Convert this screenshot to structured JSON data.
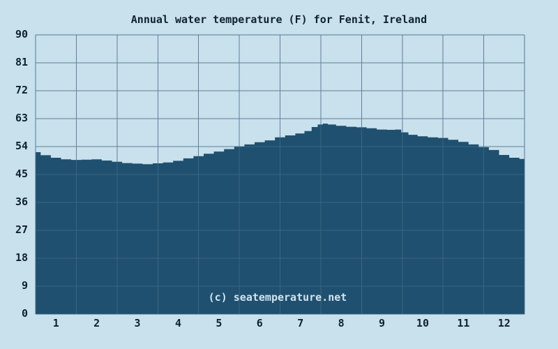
{
  "chart_data": {
    "type": "area",
    "title": "Annual water temperature (F) for Fenit, Ireland",
    "watermark": "(c) seatemperature.net",
    "x_ticks": [
      "1",
      "2",
      "3",
      "4",
      "5",
      "6",
      "7",
      "8",
      "9",
      "10",
      "11",
      "12"
    ],
    "y_ticks": [
      90,
      81,
      72,
      63,
      54,
      45,
      36,
      27,
      18,
      9,
      0
    ],
    "ylim": [
      0,
      90
    ],
    "xlim": [
      0.5,
      12.5
    ],
    "grid": true,
    "unit": "F",
    "series": [
      {
        "name": "Water temperature (F)",
        "x": [
          0.5,
          0.75,
          1.0,
          1.25,
          1.5,
          1.75,
          2.0,
          2.25,
          2.5,
          2.75,
          3.0,
          3.25,
          3.5,
          3.75,
          4.0,
          4.25,
          4.5,
          4.75,
          5.0,
          5.25,
          5.5,
          5.75,
          6.0,
          6.25,
          6.5,
          6.75,
          7.0,
          7.2,
          7.35,
          7.5,
          7.6,
          7.75,
          8.0,
          8.25,
          8.5,
          8.75,
          9.0,
          9.25,
          9.4,
          9.55,
          9.75,
          10.0,
          10.25,
          10.5,
          10.75,
          11.0,
          11.25,
          11.5,
          11.75,
          12.0,
          12.25,
          12.5
        ],
        "y": [
          52.2,
          51.2,
          50.4,
          49.9,
          49.7,
          49.8,
          49.9,
          49.5,
          49.1,
          48.7,
          48.5,
          48.3,
          48.6,
          48.9,
          49.4,
          50.2,
          50.9,
          51.7,
          52.4,
          53.2,
          54.0,
          54.7,
          55.4,
          56.0,
          57.0,
          57.6,
          58.2,
          59.0,
          60.3,
          61.1,
          61.4,
          61.1,
          60.7,
          60.4,
          60.2,
          59.9,
          59.5,
          59.4,
          59.5,
          58.6,
          57.8,
          57.3,
          57.0,
          56.8,
          56.2,
          55.5,
          54.7,
          53.8,
          52.9,
          51.3,
          50.4,
          50.0
        ]
      }
    ],
    "monthly_values_f": [
      50.4,
      49.9,
      48.5,
      49.4,
      52.4,
      55.4,
      58.2,
      60.7,
      59.5,
      57.3,
      55.5,
      51.3
    ],
    "min_f": 48.2,
    "max_f": 61.4,
    "colors": {
      "plot_bg": "#c9e0ed",
      "fill": "#20506f",
      "grid": "#5d8199",
      "grid_inside": "#3a657f",
      "border": "#4d7b95",
      "text": "#0d2330",
      "watermark": "#cfe3f0"
    }
  }
}
